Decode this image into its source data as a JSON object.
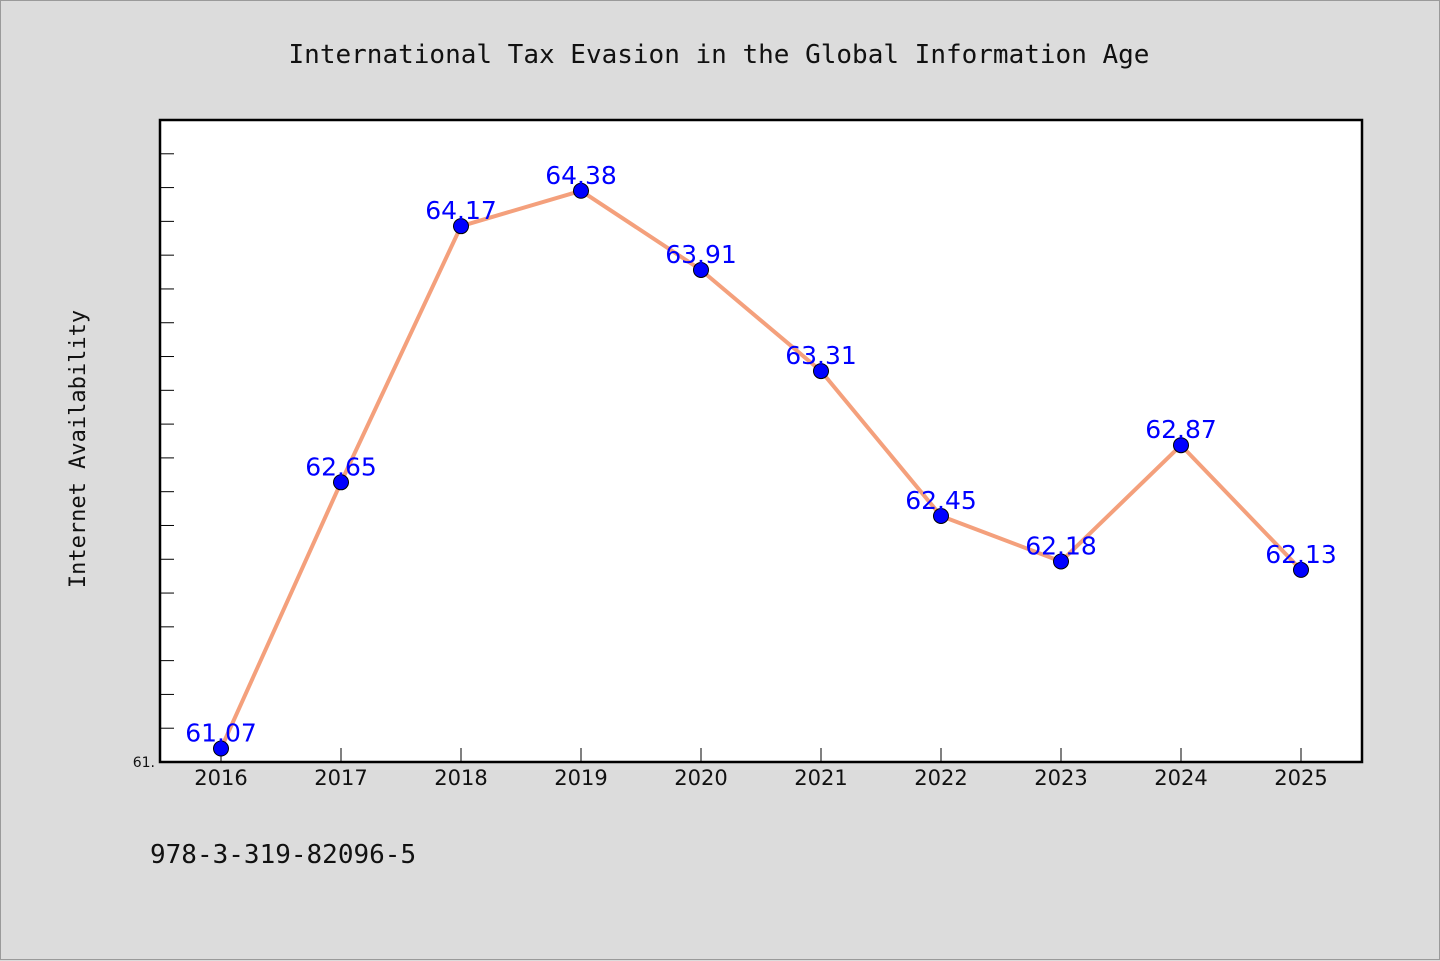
{
  "chart_data": {
    "type": "line",
    "title": "International Tax Evasion in the Global Information Age",
    "ylabel": "Internet Availability",
    "xlabel": "",
    "categories": [
      "2016",
      "2017",
      "2018",
      "2019",
      "2020",
      "2021",
      "2022",
      "2023",
      "2024",
      "2025"
    ],
    "series": [
      {
        "values": [
          61.07,
          62.65,
          64.17,
          64.38,
          63.91,
          63.31,
          62.45,
          62.18,
          62.87,
          62.13
        ],
        "labels": [
          "61.07",
          "62.65",
          "64.17",
          "64.38",
          "63.91",
          "63.31",
          "62.45",
          "62.18",
          "62.87",
          "62.13"
        ],
        "line_color": "#f4a07c",
        "marker_color": "#0000ff"
      }
    ],
    "ylim": [
      60.99,
      64.8
    ],
    "y_tick_label": "61.",
    "grid": false,
    "legend": "none",
    "background": "#ffffff",
    "figure_background": "#dcdcdc"
  },
  "footer": {
    "isbn": "978-3-319-82096-5"
  }
}
